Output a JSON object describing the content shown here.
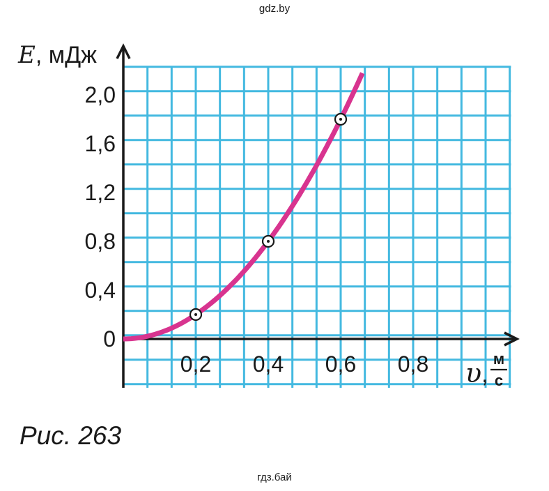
{
  "watermark_top": "gdz.by",
  "watermark_bottom": "гдз.бай",
  "caption": "Рис. 263",
  "colors": {
    "grid": "#43b9e0",
    "curve": "#d8348f",
    "axis": "#1a1a1a"
  },
  "chart_data": {
    "type": "line",
    "ylabel": {
      "symbol": "E",
      "unit": ", мДж"
    },
    "xlabel": {
      "symbol": "υ",
      "sep": ",",
      "unit_num": "м",
      "unit_den": "с"
    },
    "xlim": [
      0,
      1.07
    ],
    "ylim": [
      -0.4,
      2.23
    ],
    "x_ticks": [
      {
        "value": 0.2,
        "label": "0,2"
      },
      {
        "value": 0.4,
        "label": "0,4"
      },
      {
        "value": 0.6,
        "label": "0,6"
      },
      {
        "value": 0.8,
        "label": "0,8"
      }
    ],
    "y_ticks": [
      {
        "value": 0,
        "label": "0"
      },
      {
        "value": 0.4,
        "label": "0,4"
      },
      {
        "value": 0.8,
        "label": "0,8"
      },
      {
        "value": 1.2,
        "label": "1,2"
      },
      {
        "value": 1.6,
        "label": "1,6"
      },
      {
        "value": 2.0,
        "label": "2,0"
      }
    ],
    "points": [
      {
        "x": 0.2,
        "y": 0.2
      },
      {
        "x": 0.4,
        "y": 0.8
      },
      {
        "x": 0.6,
        "y": 1.8
      }
    ],
    "curve": {
      "formula": "E = 5 * v^2",
      "x_start": 0,
      "x_end": 0.66
    },
    "grid": true
  }
}
